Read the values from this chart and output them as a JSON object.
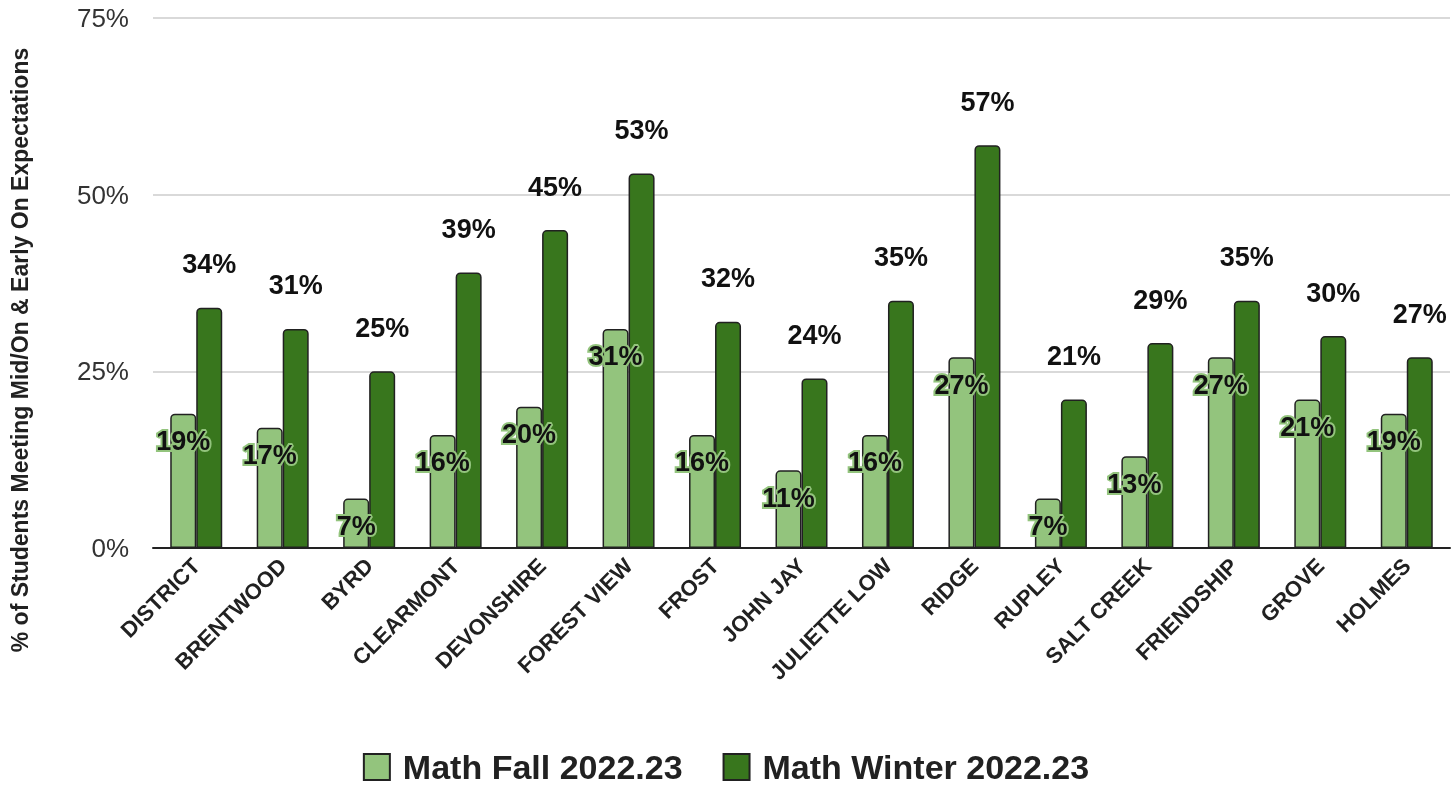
{
  "chart_data": {
    "type": "bar",
    "ylabel": "% of Students Meeting Mid/On & Early On Expectations",
    "categories": [
      "DISTRICT",
      "BRENTWOOD",
      "BYRD",
      "CLEARMONT",
      "DEVONSHIRE",
      "FOREST VIEW",
      "FROST",
      "JOHN JAY",
      "JULIETTE LOW",
      "RIDGE",
      "RUPLEY",
      "SALT CREEK",
      "FRIENDSHIP",
      "GROVE",
      "HOLMES"
    ],
    "series": [
      {
        "name": "Math Fall 2022.23",
        "color": "#93c47d",
        "values": [
          19,
          17,
          7,
          16,
          20,
          31,
          16,
          11,
          16,
          27,
          7,
          13,
          27,
          21,
          19
        ],
        "value_labels": [
          "19%",
          "17%",
          "7%",
          "16%",
          "20%",
          "31%",
          "16%",
          "11%",
          "16%",
          "27%",
          "7%",
          "13%",
          "27%",
          "21%",
          "19%"
        ]
      },
      {
        "name": "Math Winter 2022.23",
        "color": "#38761d",
        "values": [
          34,
          31,
          25,
          39,
          45,
          53,
          32,
          24,
          35,
          57,
          21,
          29,
          35,
          30,
          27
        ],
        "value_labels": [
          "34%",
          "31%",
          "25%",
          "39%",
          "45%",
          "53%",
          "32%",
          "24%",
          "35%",
          "57%",
          "21%",
          "29%",
          "35%",
          "30%",
          "27%"
        ]
      }
    ],
    "ylim": [
      0,
      75
    ],
    "yticks": [
      {
        "value": 0,
        "label": "0%"
      },
      {
        "value": 25,
        "label": "25%"
      },
      {
        "value": 50,
        "label": "50%"
      },
      {
        "value": 75,
        "label": "75%"
      }
    ],
    "grid": "y",
    "legend": "bottom"
  }
}
